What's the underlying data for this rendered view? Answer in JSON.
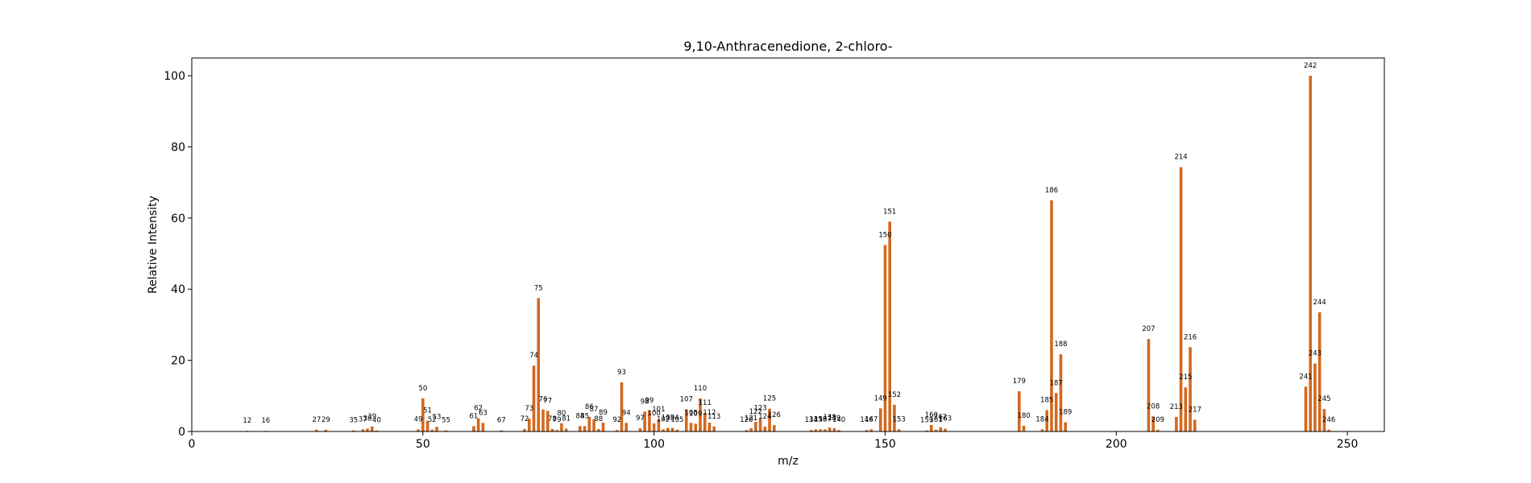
{
  "chart_data": {
    "type": "bar",
    "title": "9,10-Anthracenedione, 2-chloro-",
    "xlabel": "m/z",
    "ylabel": "Relative Intensity",
    "xlim": [
      0,
      258
    ],
    "ylim": [
      0,
      105
    ],
    "xticks": [
      0,
      50,
      100,
      150,
      200,
      250
    ],
    "yticks": [
      0,
      20,
      40,
      60,
      80,
      100
    ],
    "grid": false,
    "bar_color": "#d2691e",
    "peaks": [
      {
        "mz": 12,
        "intensity": 0.2
      },
      {
        "mz": 16,
        "intensity": 0.2
      },
      {
        "mz": 27,
        "intensity": 0.5
      },
      {
        "mz": 29,
        "intensity": 0.5
      },
      {
        "mz": 35,
        "intensity": 0.3
      },
      {
        "mz": 37,
        "intensity": 0.6
      },
      {
        "mz": 38,
        "intensity": 0.8
      },
      {
        "mz": 39,
        "intensity": 1.4
      },
      {
        "mz": 40,
        "intensity": 0.3
      },
      {
        "mz": 49,
        "intensity": 0.6
      },
      {
        "mz": 50,
        "intensity": 9.3
      },
      {
        "mz": 51,
        "intensity": 3.0
      },
      {
        "mz": 52,
        "intensity": 0.5
      },
      {
        "mz": 53,
        "intensity": 1.3
      },
      {
        "mz": 55,
        "intensity": 0.3
      },
      {
        "mz": 61,
        "intensity": 1.5
      },
      {
        "mz": 62,
        "intensity": 3.7
      },
      {
        "mz": 63,
        "intensity": 2.4
      },
      {
        "mz": 67,
        "intensity": 0.3
      },
      {
        "mz": 72,
        "intensity": 0.7
      },
      {
        "mz": 73,
        "intensity": 3.6
      },
      {
        "mz": 74,
        "intensity": 18.5
      },
      {
        "mz": 75,
        "intensity": 37.5
      },
      {
        "mz": 76,
        "intensity": 6.2
      },
      {
        "mz": 77,
        "intensity": 5.8
      },
      {
        "mz": 78,
        "intensity": 0.7
      },
      {
        "mz": 79,
        "intensity": 0.4
      },
      {
        "mz": 80,
        "intensity": 2.3
      },
      {
        "mz": 81,
        "intensity": 0.8
      },
      {
        "mz": 84,
        "intensity": 1.5
      },
      {
        "mz": 85,
        "intensity": 1.5
      },
      {
        "mz": 86,
        "intensity": 4.1
      },
      {
        "mz": 87,
        "intensity": 3.4
      },
      {
        "mz": 88,
        "intensity": 0.7
      },
      {
        "mz": 89,
        "intensity": 2.5
      },
      {
        "mz": 92,
        "intensity": 0.4
      },
      {
        "mz": 93,
        "intensity": 13.8
      },
      {
        "mz": 94,
        "intensity": 2.4
      },
      {
        "mz": 97,
        "intensity": 0.9
      },
      {
        "mz": 98,
        "intensity": 5.6
      },
      {
        "mz": 99,
        "intensity": 5.9
      },
      {
        "mz": 100,
        "intensity": 2.3
      },
      {
        "mz": 101,
        "intensity": 3.4
      },
      {
        "mz": 102,
        "intensity": 0.6
      },
      {
        "mz": 103,
        "intensity": 1.0
      },
      {
        "mz": 104,
        "intensity": 1.0
      },
      {
        "mz": 105,
        "intensity": 0.5
      },
      {
        "mz": 107,
        "intensity": 6.2
      },
      {
        "mz": 108,
        "intensity": 2.4
      },
      {
        "mz": 109,
        "intensity": 2.2
      },
      {
        "mz": 110,
        "intensity": 9.3
      },
      {
        "mz": 111,
        "intensity": 5.2
      },
      {
        "mz": 112,
        "intensity": 2.5
      },
      {
        "mz": 113,
        "intensity": 1.4
      },
      {
        "mz": 120,
        "intensity": 0.4
      },
      {
        "mz": 121,
        "intensity": 0.9
      },
      {
        "mz": 122,
        "intensity": 2.7
      },
      {
        "mz": 123,
        "intensity": 3.7
      },
      {
        "mz": 124,
        "intensity": 1.4
      },
      {
        "mz": 125,
        "intensity": 6.4
      },
      {
        "mz": 126,
        "intensity": 1.8
      },
      {
        "mz": 134,
        "intensity": 0.4
      },
      {
        "mz": 135,
        "intensity": 0.6
      },
      {
        "mz": 136,
        "intensity": 0.6
      },
      {
        "mz": 137,
        "intensity": 0.6
      },
      {
        "mz": 138,
        "intensity": 1.1
      },
      {
        "mz": 139,
        "intensity": 0.9
      },
      {
        "mz": 140,
        "intensity": 0.4
      },
      {
        "mz": 146,
        "intensity": 0.4
      },
      {
        "mz": 147,
        "intensity": 0.6
      },
      {
        "mz": 149,
        "intensity": 6.5
      },
      {
        "mz": 150,
        "intensity": 52.4
      },
      {
        "mz": 151,
        "intensity": 59.0
      },
      {
        "mz": 152,
        "intensity": 7.5
      },
      {
        "mz": 153,
        "intensity": 0.6
      },
      {
        "mz": 159,
        "intensity": 0.3
      },
      {
        "mz": 160,
        "intensity": 1.8
      },
      {
        "mz": 161,
        "intensity": 0.5
      },
      {
        "mz": 162,
        "intensity": 1.2
      },
      {
        "mz": 163,
        "intensity": 0.8
      },
      {
        "mz": 179,
        "intensity": 11.3
      },
      {
        "mz": 180,
        "intensity": 1.6
      },
      {
        "mz": 184,
        "intensity": 0.6
      },
      {
        "mz": 185,
        "intensity": 6.0
      },
      {
        "mz": 186,
        "intensity": 65.0
      },
      {
        "mz": 187,
        "intensity": 10.8
      },
      {
        "mz": 188,
        "intensity": 21.7
      },
      {
        "mz": 189,
        "intensity": 2.6
      },
      {
        "mz": 207,
        "intensity": 26.0
      },
      {
        "mz": 208,
        "intensity": 4.2
      },
      {
        "mz": 209,
        "intensity": 0.5
      },
      {
        "mz": 213,
        "intensity": 4.1
      },
      {
        "mz": 214,
        "intensity": 74.3
      },
      {
        "mz": 215,
        "intensity": 12.4
      },
      {
        "mz": 216,
        "intensity": 23.7
      },
      {
        "mz": 217,
        "intensity": 3.3
      },
      {
        "mz": 241,
        "intensity": 12.6
      },
      {
        "mz": 242,
        "intensity": 100.0
      },
      {
        "mz": 243,
        "intensity": 19.1
      },
      {
        "mz": 244,
        "intensity": 33.5
      },
      {
        "mz": 245,
        "intensity": 6.3
      },
      {
        "mz": 246,
        "intensity": 0.5
      }
    ]
  }
}
